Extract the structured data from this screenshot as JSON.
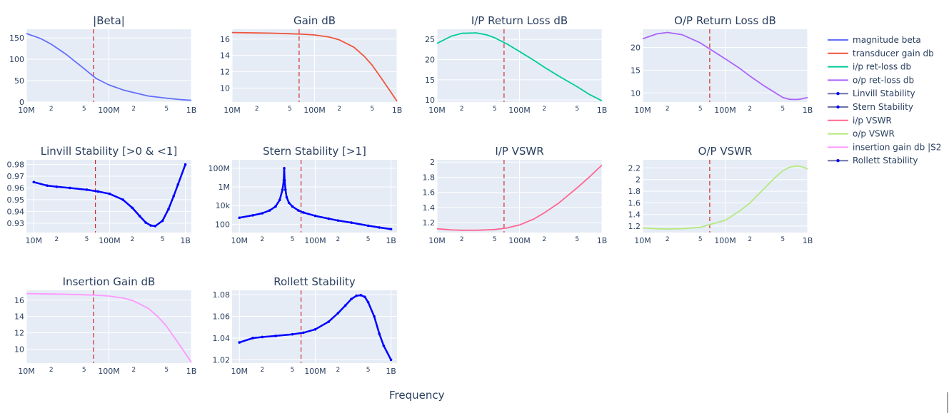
{
  "figure": {
    "x_title": "Frequency"
  },
  "colors": {
    "plot_bg": "#e5ecf6",
    "grid": "#ffffff",
    "marker_line": "#d62728"
  },
  "legend": {
    "placement": "right",
    "items": [
      {
        "label": "magnitude beta",
        "color": "#636efa",
        "markers": false
      },
      {
        "label": "transducer gain db",
        "color": "#ef553b",
        "markers": false
      },
      {
        "label": "i/p ret-loss db",
        "color": "#00cc96",
        "markers": false
      },
      {
        "label": "o/p ret-loss db",
        "color": "#ab63fa",
        "markers": false
      },
      {
        "label": "Linvill Stability",
        "color": "#0000ff",
        "markers": true
      },
      {
        "label": "Stern Stability",
        "color": "#0000ff",
        "markers": true
      },
      {
        "label": "i/p VSWR",
        "color": "#ff6692",
        "markers": false
      },
      {
        "label": "o/p VSWR",
        "color": "#b6e880",
        "markers": false
      },
      {
        "label": "insertion gain db |S2",
        "color": "#ff97ff",
        "markers": false
      },
      {
        "label": "Rollett Stability",
        "color": "#0000ff",
        "markers": true
      }
    ]
  },
  "chart_data": [
    {
      "type": "line",
      "title": "|Beta|",
      "xscale": "log",
      "xlim": [
        10000000.0,
        1000000000.0
      ],
      "yscale": "linear",
      "ylim": [
        0,
        170
      ],
      "yticks": [
        0,
        50,
        100,
        150
      ],
      "vline": 65000000.0,
      "color": "#636efa",
      "markers": false,
      "x": [
        10000000.0,
        15000000.0,
        20000000.0,
        30000000.0,
        50000000.0,
        70000000.0,
        100000000.0,
        150000000.0,
        200000000.0,
        300000000.0,
        500000000.0,
        700000000.0,
        1000000000.0
      ],
      "y": [
        160,
        148,
        135,
        112,
        78,
        55,
        40,
        28,
        22,
        14,
        9,
        6,
        4
      ]
    },
    {
      "type": "line",
      "title": "Gain dB",
      "xscale": "log",
      "xlim": [
        10000000.0,
        1000000000.0
      ],
      "yscale": "linear",
      "ylim": [
        8.3,
        17.2
      ],
      "yticks": [
        10,
        12,
        14,
        16
      ],
      "vline": 65000000.0,
      "color": "#ef553b",
      "markers": false,
      "x": [
        10000000.0,
        20000000.0,
        30000000.0,
        50000000.0,
        70000000.0,
        100000000.0,
        150000000.0,
        200000000.0,
        300000000.0,
        400000000.0,
        500000000.0,
        700000000.0,
        1000000000.0
      ],
      "y": [
        16.8,
        16.75,
        16.72,
        16.65,
        16.6,
        16.5,
        16.25,
        15.9,
        15.0,
        13.9,
        12.8,
        10.7,
        8.4
      ]
    },
    {
      "type": "line",
      "title": "I/P Return Loss dB",
      "xscale": "log",
      "xlim": [
        10000000.0,
        1000000000.0
      ],
      "yscale": "linear",
      "ylim": [
        9.5,
        27.5
      ],
      "yticks": [
        10,
        15,
        20,
        25
      ],
      "vline": 65000000.0,
      "color": "#00cc96",
      "markers": false,
      "x": [
        10000000.0,
        15000000.0,
        20000000.0,
        30000000.0,
        40000000.0,
        50000000.0,
        70000000.0,
        100000000.0,
        150000000.0,
        200000000.0,
        300000000.0,
        500000000.0,
        700000000.0,
        1000000000.0
      ],
      "y": [
        24,
        25.8,
        26.5,
        26.6,
        26.1,
        25.4,
        23.9,
        22.0,
        19.8,
        18.1,
        15.9,
        13.3,
        11.4,
        9.8
      ]
    },
    {
      "type": "line",
      "title": "O/P Return Loss dB",
      "xscale": "log",
      "xlim": [
        10000000.0,
        1000000000.0
      ],
      "yscale": "linear",
      "ylim": [
        8,
        24
      ],
      "yticks": [
        10,
        15,
        20
      ],
      "vline": 65000000.0,
      "color": "#ab63fa",
      "markers": false,
      "x": [
        10000000.0,
        15000000.0,
        20000000.0,
        30000000.0,
        50000000.0,
        70000000.0,
        100000000.0,
        150000000.0,
        200000000.0,
        300000000.0,
        500000000.0,
        600000000.0,
        700000000.0,
        800000000.0,
        1000000000.0
      ],
      "y": [
        21.9,
        23.0,
        23.3,
        22.8,
        21.0,
        19.3,
        17.5,
        15.4,
        13.7,
        11.5,
        9.0,
        8.6,
        8.55,
        8.6,
        9.0
      ]
    },
    {
      "type": "line",
      "title": "Linvill Stability [>0 & <1]",
      "xscale": "log",
      "xlim": [
        8000000.0,
        1200000000.0
      ],
      "yscale": "linear",
      "ylim": [
        0.922,
        0.984
      ],
      "yticks": [
        0.93,
        0.94,
        0.95,
        0.96,
        0.97,
        0.98
      ],
      "vline": 65000000.0,
      "color": "#0000ff",
      "markers": true,
      "x": [
        10000000.0,
        15000000.0,
        20000000.0,
        30000000.0,
        50000000.0,
        70000000.0,
        100000000.0,
        150000000.0,
        200000000.0,
        250000000.0,
        300000000.0,
        350000000.0,
        400000000.0,
        500000000.0,
        600000000.0,
        700000000.0,
        800000000.0,
        1000000000.0
      ],
      "y": [
        0.965,
        0.962,
        0.961,
        0.96,
        0.9585,
        0.957,
        0.955,
        0.95,
        0.943,
        0.936,
        0.9305,
        0.928,
        0.9275,
        0.932,
        0.942,
        0.953,
        0.963,
        0.98
      ]
    },
    {
      "type": "line",
      "title": "Stern Stability [>1]",
      "xscale": "log",
      "xlim": [
        8000000.0,
        1200000000.0
      ],
      "yscale": "log",
      "ylim": [
        13,
        800000000.0
      ],
      "yticks": [
        100,
        10000,
        1000000,
        100000000
      ],
      "yticklabels": [
        "100",
        "10k",
        "1M",
        "100M"
      ],
      "vline": 65000000.0,
      "color": "#0000ff",
      "markers": true,
      "x": [
        10000000.0,
        15000000.0,
        20000000.0,
        25000000.0,
        30000000.0,
        34000000.0,
        37000000.0,
        38500000.0,
        39000000.0,
        39500000.0,
        40500000.0,
        42000000.0,
        45000000.0,
        50000000.0,
        60000000.0,
        70000000.0,
        100000000.0,
        150000000.0,
        200000000.0,
        300000000.0,
        500000000.0,
        700000000.0,
        1000000000.0
      ],
      "y": [
        500,
        900,
        1500,
        3000,
        8000,
        40000,
        500000,
        5000000,
        100000000,
        5000000,
        500000,
        80000,
        20000,
        8000,
        3000,
        1800,
        800,
        400,
        250,
        150,
        70,
        45,
        30
      ]
    },
    {
      "type": "line",
      "title": "I/P VSWR",
      "xscale": "log",
      "xlim": [
        10000000.0,
        1000000000.0
      ],
      "yscale": "linear",
      "ylim": [
        1.07,
        2.03
      ],
      "yticks": [
        1.2,
        1.4,
        1.6,
        1.8,
        2
      ],
      "yticklabels": [
        "1.2",
        "1.4",
        "1.6",
        "1.8",
        "2"
      ],
      "vline": 65000000.0,
      "color": "#ff6692",
      "markers": false,
      "x": [
        10000000.0,
        15000000.0,
        20000000.0,
        30000000.0,
        50000000.0,
        70000000.0,
        100000000.0,
        150000000.0,
        200000000.0,
        300000000.0,
        500000000.0,
        700000000.0,
        1000000000.0
      ],
      "y": [
        1.12,
        1.105,
        1.1,
        1.1,
        1.11,
        1.13,
        1.17,
        1.25,
        1.33,
        1.46,
        1.66,
        1.8,
        1.96
      ]
    },
    {
      "type": "line",
      "title": "O/P VSWR",
      "xscale": "log",
      "xlim": [
        10000000.0,
        1000000000.0
      ],
      "yscale": "linear",
      "ylim": [
        1.09,
        2.34
      ],
      "yticks": [
        1.2,
        1.4,
        1.6,
        1.8,
        2,
        2.2
      ],
      "yticklabels": [
        "1.2",
        "1.4",
        "1.6",
        "1.8",
        "2",
        "2.2"
      ],
      "vline": 65000000.0,
      "color": "#b6e880",
      "markers": false,
      "x": [
        10000000.0,
        15000000.0,
        20000000.0,
        30000000.0,
        50000000.0,
        70000000.0,
        100000000.0,
        150000000.0,
        200000000.0,
        300000000.0,
        400000000.0,
        500000000.0,
        600000000.0,
        700000000.0,
        800000000.0,
        900000000.0,
        1000000000.0
      ],
      "y": [
        1.17,
        1.155,
        1.15,
        1.155,
        1.18,
        1.24,
        1.3,
        1.46,
        1.6,
        1.85,
        2.03,
        2.15,
        2.21,
        2.23,
        2.23,
        2.21,
        2.18
      ]
    },
    {
      "type": "line",
      "title": "Insertion Gain dB",
      "xscale": "log",
      "xlim": [
        10000000.0,
        1000000000.0
      ],
      "yscale": "linear",
      "ylim": [
        8.3,
        17.2
      ],
      "yticks": [
        10,
        12,
        14,
        16
      ],
      "vline": 65000000.0,
      "color": "#ff97ff",
      "markers": false,
      "x": [
        10000000.0,
        20000000.0,
        30000000.0,
        50000000.0,
        70000000.0,
        100000000.0,
        150000000.0,
        200000000.0,
        300000000.0,
        400000000.0,
        500000000.0,
        700000000.0,
        1000000000.0
      ],
      "y": [
        16.8,
        16.75,
        16.72,
        16.65,
        16.6,
        16.5,
        16.25,
        15.9,
        15.0,
        13.9,
        12.8,
        10.7,
        8.4
      ]
    },
    {
      "type": "line",
      "title": "Rollett Stability",
      "xscale": "log",
      "xlim": [
        8000000.0,
        1200000000.0
      ],
      "yscale": "linear",
      "ylim": [
        1.017,
        1.084
      ],
      "yticks": [
        1.02,
        1.04,
        1.06,
        1.08
      ],
      "vline": 65000000.0,
      "color": "#0000ff",
      "markers": true,
      "x": [
        10000000.0,
        15000000.0,
        20000000.0,
        30000000.0,
        50000000.0,
        70000000.0,
        100000000.0,
        150000000.0,
        200000000.0,
        250000000.0,
        300000000.0,
        350000000.0,
        400000000.0,
        450000000.0,
        500000000.0,
        600000000.0,
        700000000.0,
        800000000.0,
        1000000000.0
      ],
      "y": [
        1.036,
        1.04,
        1.041,
        1.042,
        1.0435,
        1.045,
        1.048,
        1.055,
        1.063,
        1.07,
        1.076,
        1.079,
        1.0795,
        1.078,
        1.073,
        1.06,
        1.044,
        1.033,
        1.02
      ]
    }
  ]
}
